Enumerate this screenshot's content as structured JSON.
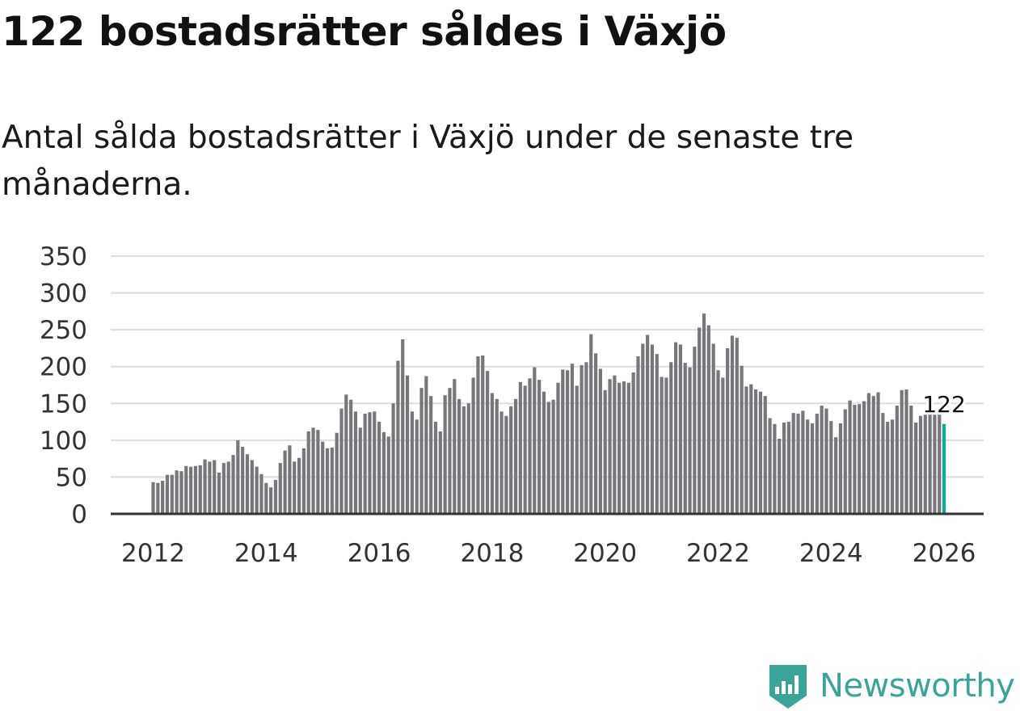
{
  "title": "122 bostadsrätter såldes i Växjö",
  "subtitle": "Antal sålda bostadsrätter i Växjö under de senaste tre månaderna.",
  "brand": {
    "name": "Newsworthy",
    "logo_icon": "newsworthy-logo-icon",
    "color": "#3aa39a"
  },
  "colors": {
    "bar": "#77767b",
    "highlight": "#13a89e",
    "grid": "#dddddd",
    "axis": "#333333",
    "text": "#333333"
  },
  "chart_data": {
    "type": "bar",
    "title": "122 bostadsrätter såldes i Växjö",
    "xlabel": "",
    "ylabel": "",
    "x_start": 2012.0,
    "x_step_months": 1,
    "ylim": [
      0,
      350
    ],
    "y_ticks": [
      0,
      50,
      100,
      150,
      200,
      250,
      300,
      350
    ],
    "x_ticks": [
      2012,
      2014,
      2016,
      2018,
      2020,
      2022,
      2024,
      2026
    ],
    "x_tick_labels": [
      "2012",
      "2014",
      "2016",
      "2018",
      "2020",
      "2022",
      "2024",
      "2026"
    ],
    "grid": true,
    "values": [
      43,
      42,
      45,
      53,
      53,
      59,
      58,
      65,
      64,
      65,
      66,
      74,
      71,
      73,
      56,
      69,
      71,
      80,
      100,
      91,
      81,
      73,
      64,
      54,
      42,
      36,
      46,
      69,
      86,
      93,
      71,
      76,
      89,
      112,
      117,
      114,
      98,
      89,
      90,
      110,
      143,
      162,
      155,
      139,
      117,
      136,
      138,
      139,
      125,
      111,
      105,
      150,
      208,
      237,
      188,
      139,
      128,
      171,
      187,
      160,
      125,
      112,
      161,
      171,
      183,
      156,
      146,
      150,
      185,
      214,
      215,
      194,
      164,
      156,
      139,
      133,
      146,
      156,
      179,
      174,
      184,
      199,
      182,
      166,
      152,
      155,
      178,
      196,
      195,
      204,
      174,
      202,
      206,
      244,
      218,
      197,
      168,
      183,
      188,
      178,
      180,
      178,
      192,
      214,
      231,
      243,
      230,
      217,
      186,
      185,
      206,
      233,
      230,
      205,
      199,
      227,
      253,
      272,
      256,
      231,
      195,
      185,
      225,
      242,
      239,
      201,
      173,
      176,
      169,
      166,
      160,
      130,
      122,
      102,
      124,
      125,
      137,
      136,
      140,
      128,
      123,
      136,
      147,
      143,
      126,
      104,
      123,
      142,
      154,
      148,
      149,
      153,
      164,
      160,
      165,
      137,
      125,
      128,
      147,
      168,
      169,
      147,
      124,
      133,
      140,
      138,
      139,
      138,
      122
    ],
    "annotation": {
      "index_from_end": 1,
      "label": "122"
    }
  }
}
